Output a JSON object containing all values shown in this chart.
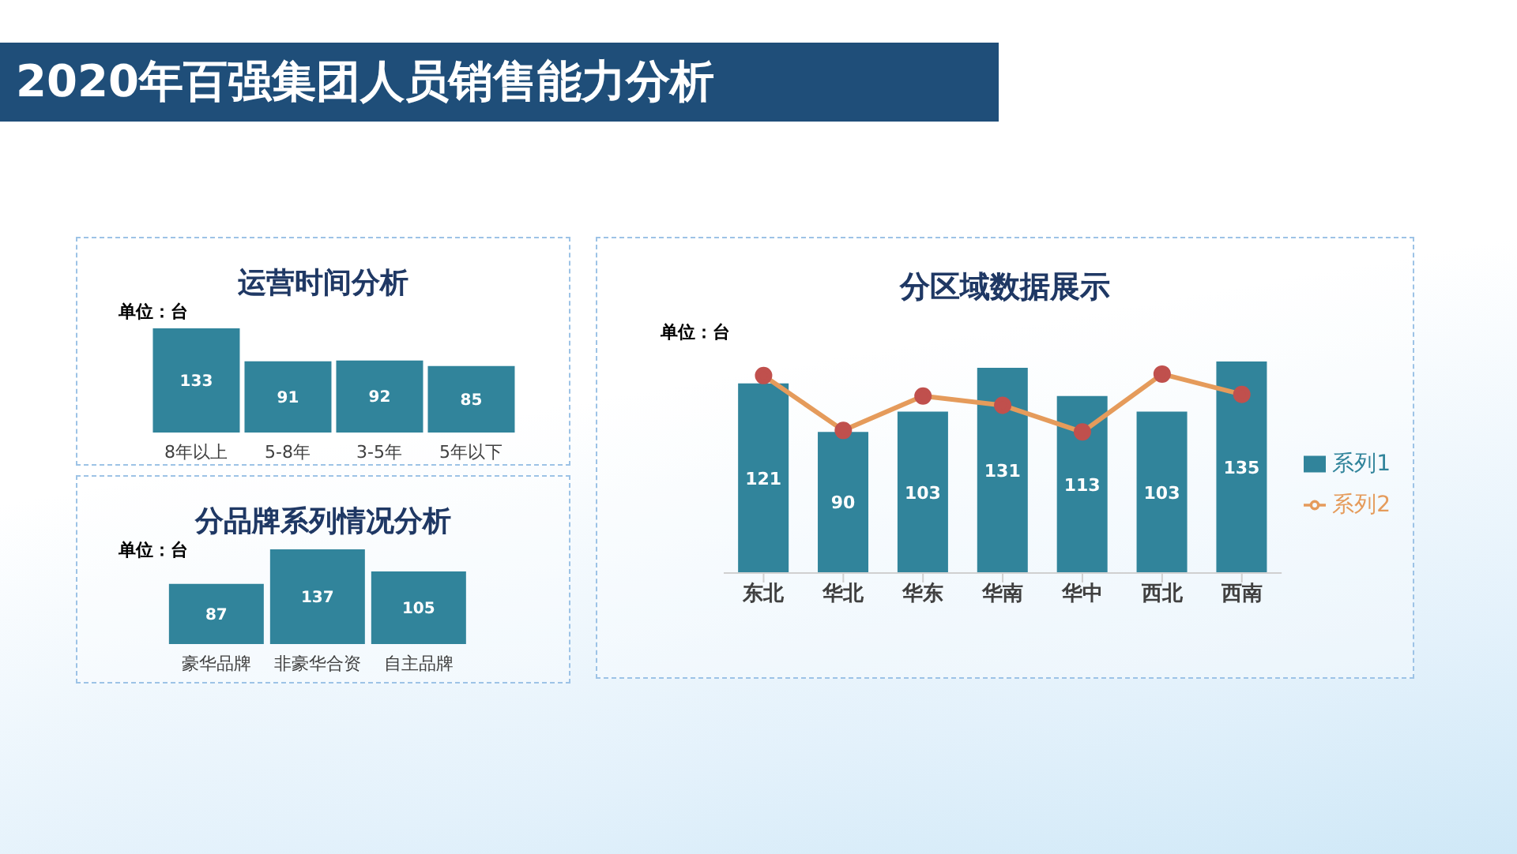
{
  "chart_data": [
    {
      "type": "other",
      "title": "2020年百强集团人员销售能力分析"
    },
    {
      "type": "bar",
      "title": "运营时间分析",
      "annotations": [
        "单位：台"
      ],
      "categories": [
        "8年以上",
        "5-8年",
        "3-5年",
        "5年以下"
      ],
      "values": [
        133,
        91,
        92,
        85
      ],
      "color": "#31849b",
      "data_labels": true
    },
    {
      "type": "bar",
      "title": "分品牌系列情况分析",
      "annotations": [
        "单位：台"
      ],
      "categories": [
        "豪华品牌",
        "非豪华合资",
        "自主品牌"
      ],
      "values": [
        87,
        137,
        105
      ],
      "color": "#31849b",
      "data_labels": true
    },
    {
      "type": "bar",
      "title": "分区域数据展示",
      "annotations": [
        "单位：台"
      ],
      "categories": [
        "东北",
        "华北",
        "华东",
        "华南",
        "华中",
        "西北",
        "西南"
      ],
      "legend": "right",
      "series": [
        {
          "name": "系列1",
          "type": "bar",
          "color": "#31849b",
          "values": [
            121,
            90,
            103,
            131,
            113,
            103,
            135
          ],
          "value_labels": [
            "121",
            "90",
            "103",
            "131",
            "113",
            "103",
            "135"
          ]
        },
        {
          "name": "系列2",
          "type": "line",
          "color": "#e59b5b",
          "marker": "circle",
          "values": [
            126,
            91,
            113,
            107,
            90,
            127,
            114
          ]
        }
      ]
    }
  ]
}
